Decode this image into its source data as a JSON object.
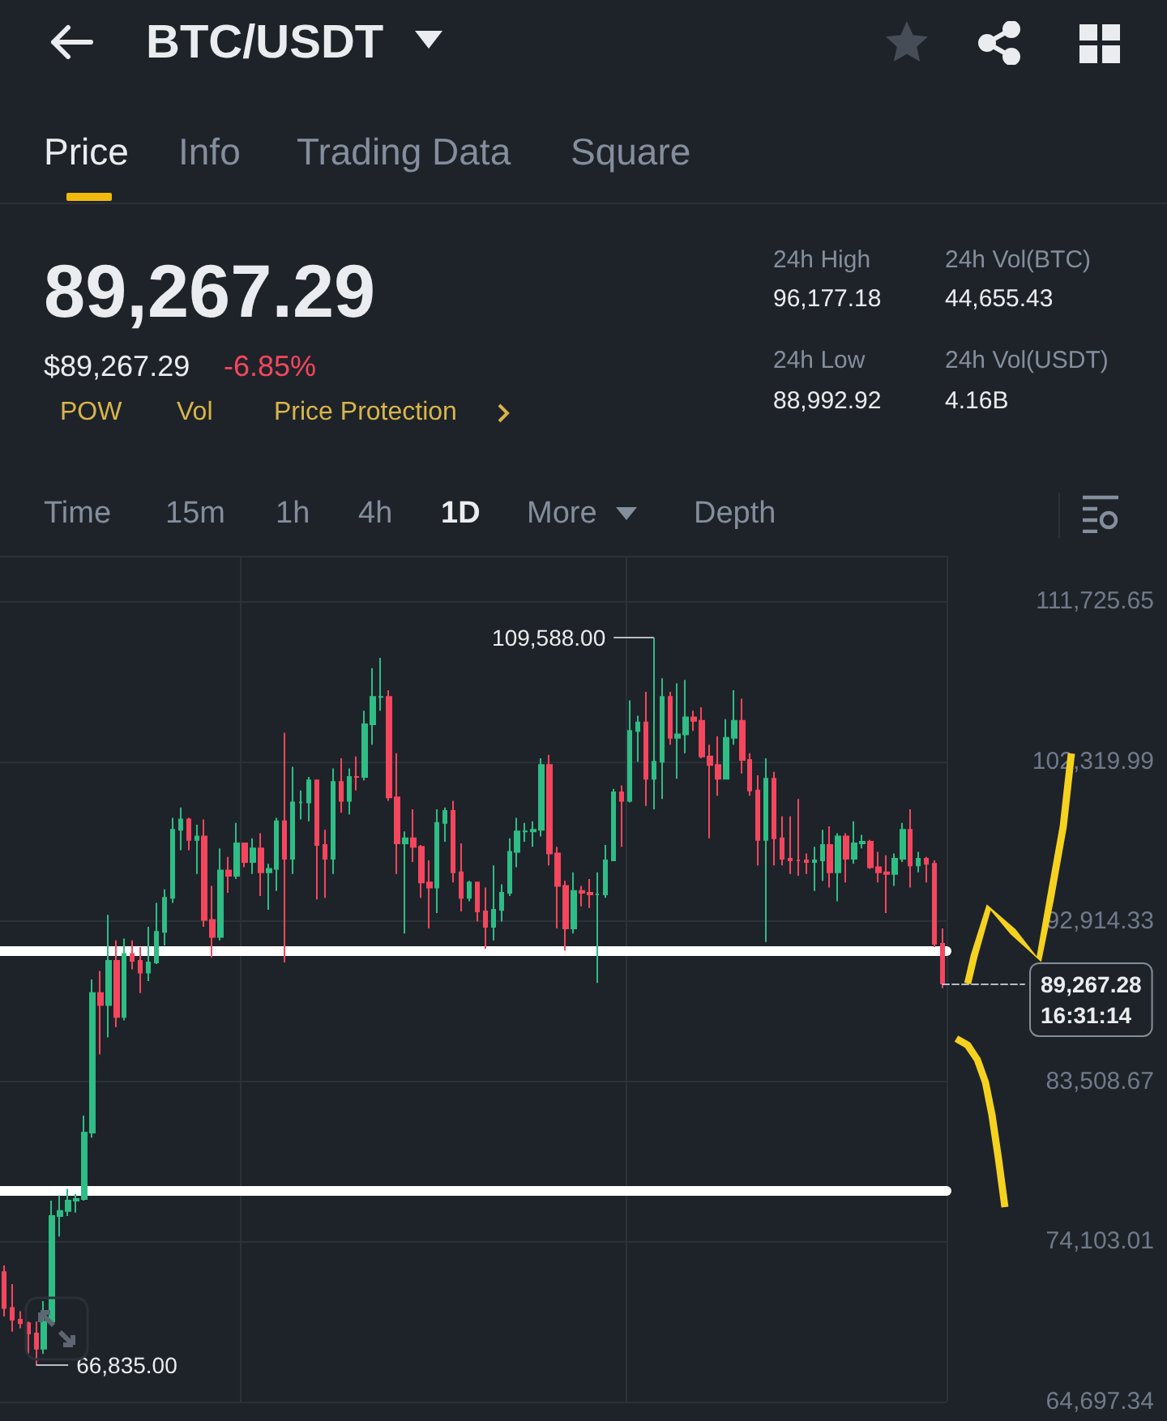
{
  "chart_data": {
    "type": "candlestick",
    "title": "BTC/USDT",
    "annotations": [
      "Price",
      "Info",
      "Trading Data",
      "Square",
      "89,267.29",
      "$89,267.29",
      "-6.85%",
      "POW",
      "Vol",
      "Price Protection",
      "24h High",
      "96,177.18",
      "24h Low",
      "88,992.92",
      "24h Vol(BTC)",
      "44,655.43",
      "24h Vol(USDT)",
      "4.16B",
      "Time",
      "15m",
      "1h",
      "4h",
      "1D",
      "More",
      "Depth",
      "109,588.00",
      "66,835.00"
    ],
    "categories": [
      null,
      null,
      null,
      null,
      null,
      null,
      null,
      null,
      null,
      null,
      null,
      null,
      null,
      null,
      null,
      null,
      null,
      null,
      null,
      null,
      null,
      null,
      null,
      null,
      null,
      null,
      null,
      null,
      null,
      null,
      null,
      null,
      null,
      null,
      null,
      null,
      null,
      null,
      null,
      null,
      null,
      null,
      null,
      null,
      null,
      null,
      null,
      null,
      null,
      null,
      null,
      null,
      null,
      null,
      null,
      null,
      null,
      null,
      null,
      null,
      null,
      null,
      null,
      null,
      null,
      null,
      null,
      null,
      null,
      null,
      null,
      null,
      null,
      null,
      null,
      null,
      null,
      null,
      null,
      null,
      null,
      null,
      null,
      null,
      null,
      null,
      null,
      null,
      null,
      null,
      null,
      null,
      null,
      null,
      null,
      null,
      null,
      null,
      null,
      null,
      null,
      null,
      null,
      null,
      null,
      null,
      null,
      null,
      null,
      null,
      null,
      null,
      null,
      null,
      null,
      null,
      null,
      null
    ],
    "ohlc": [
      [
        72300,
        72700,
        69700,
        70200
      ],
      [
        70200,
        71600,
        68800,
        69500
      ],
      [
        69500,
        70000,
        69000,
        69300
      ],
      [
        69300,
        69400,
        67500,
        68700
      ],
      [
        68700,
        69400,
        66835,
        67800
      ],
      [
        67800,
        70600,
        67500,
        69400
      ],
      [
        69400,
        76500,
        69300,
        75600
      ],
      [
        75600,
        76800,
        74400,
        75900
      ],
      [
        75900,
        77200,
        75600,
        76500
      ],
      [
        76500,
        76900,
        75800,
        76600
      ],
      [
        76600,
        81500,
        76500,
        80500
      ],
      [
        80500,
        89500,
        80200,
        88700
      ],
      [
        88700,
        90000,
        85100,
        88000
      ],
      [
        88000,
        93300,
        86100,
        90600
      ],
      [
        90600,
        91800,
        86700,
        87300
      ],
      [
        87300,
        91900,
        87100,
        91000
      ],
      [
        91000,
        91800,
        90100,
        90600
      ],
      [
        90600,
        91400,
        88700,
        89900
      ],
      [
        89900,
        92600,
        89400,
        90500
      ],
      [
        90500,
        94000,
        90400,
        92300
      ],
      [
        92300,
        94800,
        91500,
        94300
      ],
      [
        94300,
        99000,
        94000,
        98300
      ],
      [
        98300,
        99600,
        97100,
        98900
      ],
      [
        98900,
        99000,
        97100,
        97700
      ],
      [
        97700,
        98600,
        95700,
        97900
      ],
      [
        97900,
        98900,
        92600,
        93000
      ],
      [
        93000,
        95000,
        90800,
        92000
      ],
      [
        92000,
        97200,
        91800,
        95900
      ],
      [
        95900,
        96700,
        94600,
        95600
      ],
      [
        95600,
        98700,
        95400,
        97500
      ],
      [
        97500,
        97500,
        96100,
        96400
      ],
      [
        96400,
        97800,
        95700,
        97200
      ],
      [
        97200,
        98100,
        94400,
        95800
      ],
      [
        95800,
        96300,
        93600,
        96000
      ],
      [
        96000,
        99000,
        94700,
        98800
      ],
      [
        98800,
        104000,
        90500,
        96600
      ],
      [
        96600,
        102000,
        95700,
        99900
      ],
      [
        99900,
        100600,
        98900,
        99900
      ],
      [
        99900,
        101400,
        98800,
        101200
      ],
      [
        101200,
        101200,
        94200,
        97400
      ],
      [
        97400,
        98300,
        94300,
        96600
      ],
      [
        96600,
        101900,
        95700,
        101100
      ],
      [
        101100,
        102500,
        99300,
        100000
      ],
      [
        100000,
        101900,
        99200,
        101400
      ],
      [
        101400,
        102600,
        100600,
        101400
      ],
      [
        101400,
        105300,
        101200,
        104500
      ],
      [
        104500,
        107800,
        103300,
        106100
      ],
      [
        106100,
        108400,
        105300,
        106100
      ],
      [
        106100,
        106500,
        100000,
        100200
      ],
      [
        100200,
        102800,
        95700,
        97500
      ],
      [
        97500,
        98200,
        92200,
        97800
      ],
      [
        97800,
        99500,
        96400,
        97300
      ],
      [
        97300,
        97400,
        94300,
        95200
      ],
      [
        95200,
        96500,
        92500,
        94900
      ],
      [
        94900,
        99500,
        93400,
        98700
      ],
      [
        98700,
        99600,
        97600,
        99400
      ],
      [
        99400,
        100000,
        95200,
        95800
      ],
      [
        95800,
        97500,
        93500,
        94300
      ],
      [
        94300,
        95300,
        94100,
        95200
      ],
      [
        95200,
        95200,
        92900,
        93500
      ],
      [
        93500,
        94900,
        91300,
        92600
      ],
      [
        92600,
        96200,
        91800,
        93600
      ],
      [
        93600,
        95100,
        92900,
        94600
      ],
      [
        94600,
        97800,
        94400,
        97000
      ],
      [
        97000,
        99000,
        96100,
        98200
      ],
      [
        98200,
        98700,
        97600,
        98200
      ],
      [
        98200,
        98800,
        97300,
        98300
      ],
      [
        98300,
        102500,
        97900,
        102100
      ],
      [
        102100,
        102700,
        96200,
        96900
      ],
      [
        96900,
        97300,
        92500,
        95000
      ],
      [
        95000,
        95300,
        91200,
        92500
      ],
      [
        92500,
        95800,
        92200,
        94700
      ],
      [
        94700,
        95000,
        93800,
        94600
      ],
      [
        94600,
        95400,
        93700,
        94500
      ],
      [
        94500,
        95800,
        89300,
        94500
      ],
      [
        94500,
        97400,
        94300,
        96500
      ],
      [
        96500,
        100700,
        96500,
        100500
      ],
      [
        100500,
        100900,
        97300,
        100000
      ],
      [
        100000,
        105900,
        99900,
        104100
      ],
      [
        104100,
        105000,
        102300,
        104600
      ],
      [
        104600,
        106400,
        99700,
        101300
      ],
      [
        101300,
        109588,
        99500,
        102300
      ],
      [
        102300,
        107200,
        100100,
        106100
      ],
      [
        106100,
        106400,
        103300,
        103700
      ],
      [
        103700,
        106900,
        101300,
        103900
      ],
      [
        103900,
        107100,
        102800,
        104900
      ],
      [
        104900,
        105300,
        104100,
        104700
      ],
      [
        104700,
        105500,
        102500,
        102600
      ],
      [
        102600,
        103300,
        97800,
        102100
      ],
      [
        102100,
        103800,
        100300,
        101300
      ],
      [
        101300,
        104800,
        101300,
        103700
      ],
      [
        103700,
        106500,
        103300,
        104700
      ],
      [
        104700,
        106000,
        101600,
        102400
      ],
      [
        102400,
        102800,
        100300,
        100600
      ],
      [
        100600,
        101500,
        96200,
        97700
      ],
      [
        97700,
        102500,
        91700,
        101300
      ],
      [
        101300,
        101700,
        96200,
        97800
      ],
      [
        97800,
        99100,
        96200,
        96600
      ],
      [
        96600,
        99100,
        95700,
        96500
      ],
      [
        96500,
        100100,
        95600,
        96500
      ],
      [
        96500,
        96900,
        95700,
        96400
      ],
      [
        96400,
        97300,
        94700,
        96500
      ],
      [
        96500,
        98300,
        95300,
        97400
      ],
      [
        97400,
        98500,
        94900,
        95800
      ],
      [
        95800,
        98100,
        94100,
        97900
      ],
      [
        97900,
        98100,
        95200,
        96600
      ],
      [
        96600,
        98800,
        96300,
        97500
      ],
      [
        97500,
        98000,
        97200,
        97600
      ],
      [
        97600,
        97700,
        96000,
        96100
      ],
      [
        96100,
        97000,
        95200,
        95800
      ],
      [
        95800,
        96800,
        93400,
        95700
      ],
      [
        95700,
        96900,
        95000,
        96600
      ],
      [
        96600,
        98700,
        96400,
        98300
      ],
      [
        98300,
        99500,
        94900,
        96200
      ],
      [
        96200,
        97000,
        95800,
        96600
      ],
      [
        96600,
        96700,
        95200,
        96300
      ],
      [
        96300,
        96500,
        91400,
        91600
      ],
      [
        91600,
        92500,
        88993,
        89267.28
      ]
    ],
    "colors": [
      "#f6465d",
      "#f6465d",
      "#f6465d",
      "#f6465d",
      "#f6465d",
      "#2ebd85",
      "#2ebd85",
      "#2ebd85",
      "#2ebd85",
      "#2ebd85",
      "#2ebd85",
      "#2ebd85",
      "#f6465d",
      "#2ebd85",
      "#f6465d",
      "#2ebd85",
      "#f6465d",
      "#f6465d",
      "#2ebd85",
      "#2ebd85",
      "#2ebd85",
      "#2ebd85",
      "#2ebd85",
      "#f6465d",
      "#2ebd85",
      "#f6465d",
      "#f6465d",
      "#2ebd85",
      "#f6465d",
      "#2ebd85",
      "#f6465d",
      "#2ebd85",
      "#f6465d",
      "#2ebd85",
      "#2ebd85",
      "#f6465d",
      "#2ebd85",
      "#2ebd85",
      "#2ebd85",
      "#f6465d",
      "#f6465d",
      "#2ebd85",
      "#f6465d",
      "#2ebd85",
      "#f6465d",
      "#2ebd85",
      "#2ebd85",
      "#2ebd85",
      "#f6465d",
      "#f6465d",
      "#2ebd85",
      "#f6465d",
      "#f6465d",
      "#f6465d",
      "#2ebd85",
      "#2ebd85",
      "#f6465d",
      "#f6465d",
      "#2ebd85",
      "#f6465d",
      "#f6465d",
      "#2ebd85",
      "#2ebd85",
      "#2ebd85",
      "#2ebd85",
      "#2ebd85",
      "#2ebd85",
      "#2ebd85",
      "#f6465d",
      "#f6465d",
      "#f6465d",
      "#2ebd85",
      "#f6465d",
      "#f6465d",
      "#2ebd85",
      "#2ebd85",
      "#2ebd85",
      "#f6465d",
      "#2ebd85",
      "#2ebd85",
      "#f6465d",
      "#2ebd85",
      "#2ebd85",
      "#f6465d",
      "#2ebd85",
      "#2ebd85",
      "#f6465d",
      "#f6465d",
      "#f6465d",
      "#f6465d",
      "#2ebd85",
      "#2ebd85",
      "#f6465d",
      "#f6465d",
      "#f6465d",
      "#2ebd85",
      "#f6465d",
      "#f6465d",
      "#f6465d",
      "#f6465d",
      "#f6465d",
      "#2ebd85",
      "#2ebd85",
      "#f6465d",
      "#2ebd85",
      "#f6465d",
      "#2ebd85",
      "#2ebd85",
      "#f6465d",
      "#f6465d",
      "#f6465d",
      "#2ebd85",
      "#2ebd85",
      "#f6465d",
      "#2ebd85",
      "#f6465d",
      "#f6465d",
      "#f6465d"
    ],
    "ylim": [
      64697.34,
      114400
    ],
    "yticks": [
      {
        "value": 64697.34,
        "label": "64,697.34"
      },
      {
        "value": 74103.01,
        "label": "74,103.01"
      },
      {
        "value": 83508.67,
        "label": "83,508.67"
      },
      {
        "value": 92914.33,
        "label": "92,914.33"
      },
      {
        "value": 102319.99,
        "label": "102,319.99"
      },
      {
        "value": 111725.65,
        "label": "111,725.65"
      }
    ],
    "ref_lines": [
      {
        "axis": "y",
        "value": 91200,
        "color": "#ffffff"
      },
      {
        "axis": "y",
        "value": 77100,
        "color": "#ffffff"
      },
      {
        "axis": "y",
        "value": 89267.28,
        "label": "89,267.28\n16:31:14",
        "color": "#b7bdc6",
        "line_style": "dashed"
      }
    ],
    "grid": true,
    "tick_labels": "y"
  }
}
